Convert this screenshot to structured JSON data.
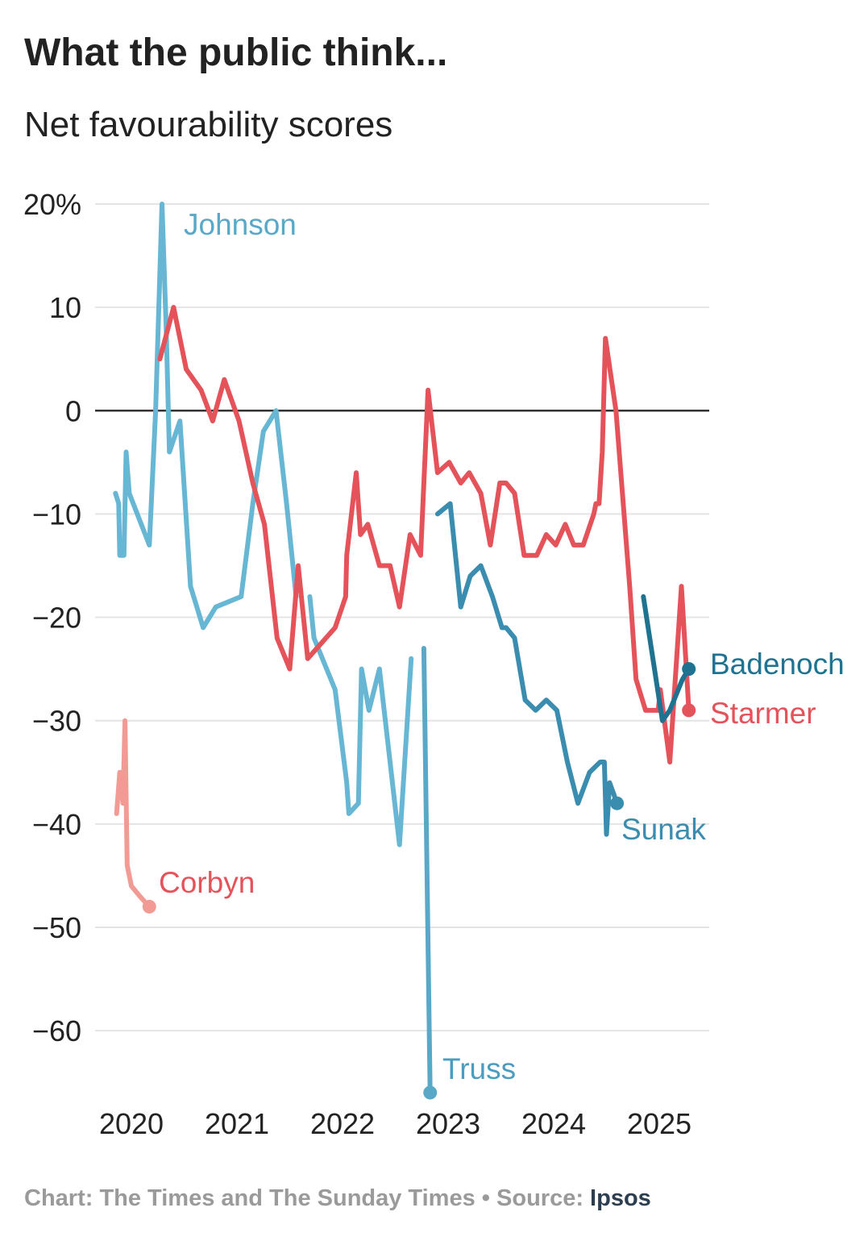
{
  "header": {
    "title": "What the public think...",
    "subtitle": "Net favourability scores"
  },
  "footer": {
    "credit": "Chart: The Times and The Sunday Times",
    "separator": " • ",
    "source_label": "Source: ",
    "source_name": "Ipsos"
  },
  "chart_data": {
    "type": "line",
    "title": "What the public think...",
    "subtitle": "Net favourability scores",
    "xlabel": "",
    "ylabel": "",
    "xlim": [
      2019.9,
      2025.4
    ],
    "ylim": [
      -66,
      20
    ],
    "x_ticks": [
      2020,
      2021,
      2022,
      2023,
      2024,
      2025
    ],
    "x_tick_labels": [
      "2020",
      "2021",
      "2022",
      "2023",
      "2024",
      "2025"
    ],
    "y_ticks": [
      20,
      10,
      0,
      -10,
      -20,
      -30,
      -40,
      -50,
      -60
    ],
    "y_tick_labels": [
      "20%",
      "10",
      "0",
      "−10",
      "−20",
      "−30",
      "−40",
      "−50",
      "−60"
    ],
    "grid": true,
    "zero_line": true,
    "legend": "direct labels at line ends",
    "series": [
      {
        "name": "Johnson",
        "color": "#66b6d4",
        "end_marker": false,
        "points": [
          [
            2019.85,
            -8
          ],
          [
            2019.88,
            -9
          ],
          [
            2019.89,
            -14
          ],
          [
            2019.93,
            -14
          ],
          [
            2019.95,
            -4
          ],
          [
            2019.98,
            -8
          ],
          [
            2020.17,
            -13
          ],
          [
            2020.23,
            0
          ],
          [
            2020.29,
            20
          ],
          [
            2020.33,
            8
          ],
          [
            2020.36,
            -4
          ],
          [
            2020.46,
            -1
          ],
          [
            2020.56,
            -17
          ],
          [
            2020.68,
            -21
          ],
          [
            2020.8,
            -19
          ],
          [
            2021.04,
            -18
          ],
          [
            2021.15,
            -9
          ],
          [
            2021.25,
            -2
          ],
          [
            2021.37,
            0
          ],
          [
            2021.47,
            -9
          ],
          [
            2021.56,
            -18
          ]
        ]
      },
      {
        "name": "Johnson (continued)",
        "color": "#66b6d4",
        "end_marker": false,
        "points": [
          [
            2021.69,
            -18
          ],
          [
            2021.73,
            -22
          ],
          [
            2021.93,
            -27
          ],
          [
            2022.04,
            -36
          ],
          [
            2022.06,
            -39
          ],
          [
            2022.15,
            -38
          ],
          [
            2022.18,
            -25
          ],
          [
            2022.25,
            -29
          ],
          [
            2022.35,
            -25
          ],
          [
            2022.54,
            -42
          ],
          [
            2022.65,
            -24
          ]
        ]
      },
      {
        "name": "Truss",
        "color": "#5aa8c8",
        "end_marker": true,
        "points": [
          [
            2022.77,
            -23
          ],
          [
            2022.83,
            -66
          ]
        ]
      },
      {
        "name": "Corbyn",
        "color": "#f29a94",
        "end_marker": true,
        "points": [
          [
            2019.86,
            -39
          ],
          [
            2019.89,
            -35
          ],
          [
            2019.92,
            -38
          ],
          [
            2019.94,
            -30
          ],
          [
            2019.96,
            -44
          ],
          [
            2020.0,
            -46
          ],
          [
            2020.08,
            -47
          ],
          [
            2020.17,
            -48
          ]
        ]
      },
      {
        "name": "Starmer",
        "color": "#e5535a",
        "end_marker": true,
        "points": [
          [
            2020.27,
            5
          ],
          [
            2020.4,
            10
          ],
          [
            2020.52,
            4
          ],
          [
            2020.66,
            2
          ],
          [
            2020.77,
            -1
          ],
          [
            2020.88,
            3
          ],
          [
            2021.02,
            -1
          ],
          [
            2021.15,
            -7
          ],
          [
            2021.26,
            -11
          ],
          [
            2021.38,
            -22
          ],
          [
            2021.5,
            -25
          ],
          [
            2021.58,
            -15
          ],
          [
            2021.67,
            -24
          ],
          [
            2021.93,
            -21
          ],
          [
            2022.03,
            -18
          ],
          [
            2022.04,
            -14
          ],
          [
            2022.13,
            -6
          ],
          [
            2022.17,
            -12
          ],
          [
            2022.24,
            -11
          ],
          [
            2022.35,
            -15
          ],
          [
            2022.45,
            -15
          ],
          [
            2022.54,
            -19
          ],
          [
            2022.64,
            -12
          ],
          [
            2022.74,
            -14
          ],
          [
            2022.81,
            2
          ],
          [
            2022.9,
            -6
          ],
          [
            2023.01,
            -5
          ],
          [
            2023.12,
            -7
          ],
          [
            2023.2,
            -6
          ],
          [
            2023.31,
            -8
          ],
          [
            2023.4,
            -13
          ],
          [
            2023.49,
            -7
          ],
          [
            2023.55,
            -7
          ],
          [
            2023.63,
            -8
          ],
          [
            2023.72,
            -14
          ],
          [
            2023.84,
            -14
          ],
          [
            2023.93,
            -12
          ],
          [
            2024.02,
            -13
          ],
          [
            2024.11,
            -11
          ],
          [
            2024.19,
            -13
          ],
          [
            2024.28,
            -13
          ],
          [
            2024.38,
            -10
          ],
          [
            2024.4,
            -9
          ],
          [
            2024.43,
            -9
          ],
          [
            2024.46,
            -4
          ],
          [
            2024.49,
            7
          ],
          [
            2024.59,
            0
          ],
          [
            2024.72,
            -17
          ],
          [
            2024.78,
            -26
          ],
          [
            2024.87,
            -29
          ],
          [
            2024.99,
            -29
          ],
          [
            2025.01,
            -27
          ],
          [
            2025.1,
            -34
          ],
          [
            2025.21,
            -17
          ],
          [
            2025.28,
            -29
          ]
        ]
      },
      {
        "name": "Sunak",
        "color": "#3b8db0",
        "end_marker": true,
        "points": [
          [
            2022.9,
            -10
          ],
          [
            2023.02,
            -9
          ],
          [
            2023.12,
            -19
          ],
          [
            2023.21,
            -16
          ],
          [
            2023.31,
            -15
          ],
          [
            2023.42,
            -18
          ],
          [
            2023.51,
            -21
          ],
          [
            2023.55,
            -21
          ],
          [
            2023.63,
            -22
          ],
          [
            2023.73,
            -28
          ],
          [
            2023.83,
            -29
          ],
          [
            2023.93,
            -28
          ],
          [
            2024.03,
            -29
          ],
          [
            2024.13,
            -34
          ],
          [
            2024.23,
            -38
          ],
          [
            2024.34,
            -35
          ],
          [
            2024.44,
            -34
          ],
          [
            2024.48,
            -34
          ],
          [
            2024.5,
            -41
          ],
          [
            2024.53,
            -36
          ],
          [
            2024.6,
            -38
          ]
        ]
      },
      {
        "name": "Badenoch",
        "color": "#1f7391",
        "end_marker": true,
        "points": [
          [
            2024.85,
            -18
          ],
          [
            2025.03,
            -30
          ],
          [
            2025.1,
            -29
          ],
          [
            2025.22,
            -26
          ],
          [
            2025.28,
            -25
          ]
        ]
      }
    ],
    "labels": [
      {
        "text": "Johnson",
        "series": "Johnson",
        "color": "#5aa8c8"
      },
      {
        "text": "Corbyn",
        "series": "Corbyn",
        "color": "#e5535a"
      },
      {
        "text": "Truss",
        "series": "Truss",
        "color": "#4a9cc0"
      },
      {
        "text": "Sunak",
        "series": "Sunak",
        "color": "#3b8db0"
      },
      {
        "text": "Badenoch",
        "series": "Badenoch",
        "color": "#1f7391"
      },
      {
        "text": "Starmer",
        "series": "Starmer",
        "color": "#e5535a"
      }
    ]
  }
}
